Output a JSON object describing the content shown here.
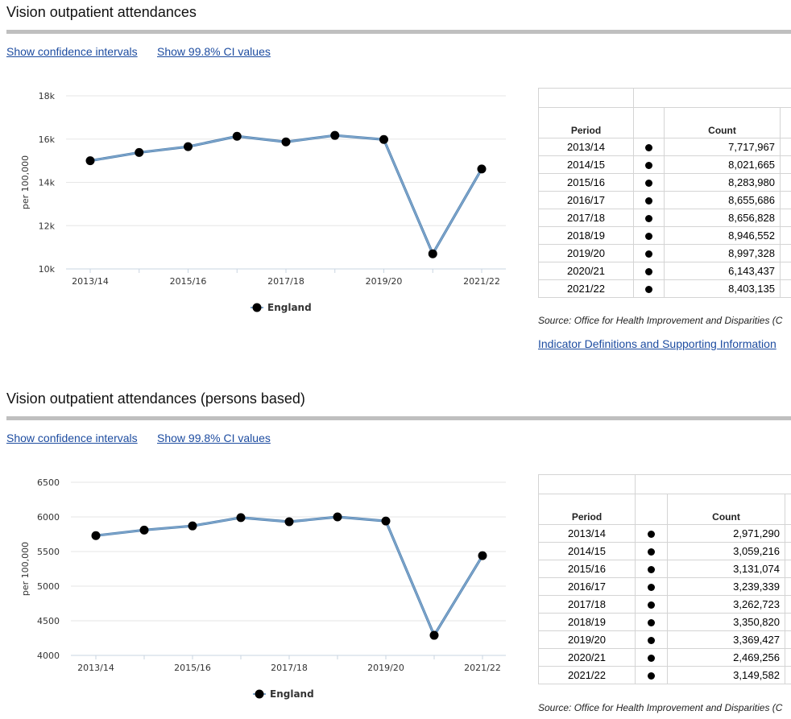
{
  "panels": [
    {
      "title": "Vision outpatient attendances",
      "link_ci": "Show confidence intervals",
      "link_ci_values": "Show 99.8% CI values",
      "table_headers": {
        "period": "Period",
        "count": "Count"
      },
      "rows": [
        {
          "period": "2013/14",
          "count": "7,717,967"
        },
        {
          "period": "2014/15",
          "count": "8,021,665"
        },
        {
          "period": "2015/16",
          "count": "8,283,980"
        },
        {
          "period": "2016/17",
          "count": "8,655,686"
        },
        {
          "period": "2017/18",
          "count": "8,656,828"
        },
        {
          "period": "2018/19",
          "count": "8,946,552"
        },
        {
          "period": "2019/20",
          "count": "8,997,328"
        },
        {
          "period": "2020/21",
          "count": "6,143,437"
        },
        {
          "period": "2021/22",
          "count": "8,403,135"
        }
      ],
      "source": "Source: Office for Health Improvement and Disparities (C",
      "definitions_link": "Indicator Definitions and Supporting Information"
    },
    {
      "title": "Vision outpatient attendances (persons based)",
      "link_ci": "Show confidence intervals",
      "link_ci_values": "Show 99.8% CI values",
      "table_headers": {
        "period": "Period",
        "count": "Count"
      },
      "rows": [
        {
          "period": "2013/14",
          "count": "2,971,290"
        },
        {
          "period": "2014/15",
          "count": "3,059,216"
        },
        {
          "period": "2015/16",
          "count": "3,131,074"
        },
        {
          "period": "2016/17",
          "count": "3,239,339"
        },
        {
          "period": "2017/18",
          "count": "3,262,723"
        },
        {
          "period": "2018/19",
          "count": "3,350,820"
        },
        {
          "period": "2019/20",
          "count": "3,369,427"
        },
        {
          "period": "2020/21",
          "count": "2,469,256"
        },
        {
          "period": "2021/22",
          "count": "3,149,582"
        }
      ],
      "source": "Source: Office for Health Improvement and Disparities (C"
    }
  ],
  "chart_data": [
    {
      "type": "line",
      "ylabel": "per 100,000",
      "categories": [
        "2013/14",
        "2014/15",
        "2015/16",
        "2016/17",
        "2017/18",
        "2018/19",
        "2019/20",
        "2020/21",
        "2021/22"
      ],
      "x_tick_labels": [
        "2013/14",
        "2015/16",
        "2017/18",
        "2019/20",
        "2021/22"
      ],
      "y_ticks": [
        10000,
        12000,
        14000,
        16000,
        18000
      ],
      "y_tick_labels": [
        "10k",
        "12k",
        "14k",
        "16k",
        "18k"
      ],
      "ylim": [
        10000,
        18000
      ],
      "series": [
        {
          "name": "England",
          "values": [
            15000,
            15380,
            15650,
            16130,
            15870,
            16170,
            15980,
            10700,
            14620
          ],
          "color": "#7ea6cc"
        }
      ],
      "legend_position": "bottom-center",
      "grid": true
    },
    {
      "type": "line",
      "ylabel": "per 100,000",
      "categories": [
        "2013/14",
        "2014/15",
        "2015/16",
        "2016/17",
        "2017/18",
        "2018/19",
        "2019/20",
        "2020/21",
        "2021/22"
      ],
      "x_tick_labels": [
        "2013/14",
        "2015/16",
        "2017/18",
        "2019/20",
        "2021/22"
      ],
      "y_ticks": [
        4000,
        4500,
        5000,
        5500,
        6000,
        6500
      ],
      "y_tick_labels": [
        "4000",
        "4500",
        "5000",
        "5500",
        "6000",
        "6500"
      ],
      "ylim": [
        4000,
        6500
      ],
      "series": [
        {
          "name": "England",
          "values": [
            5730,
            5810,
            5870,
            5990,
            5930,
            6000,
            5940,
            4290,
            5440
          ],
          "color": "#7ea6cc"
        }
      ],
      "legend_position": "bottom-center",
      "grid": true
    }
  ]
}
